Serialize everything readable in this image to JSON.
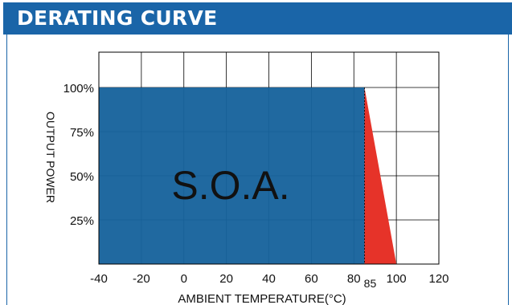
{
  "header": {
    "title": "DERATING CURVE"
  },
  "colors": {
    "header_bg": "#1a65a8",
    "soa_fill": "#17639c",
    "derate_fill": "#e63329",
    "grid": "#000000"
  },
  "chart_data": {
    "type": "area",
    "title": "DERATING CURVE",
    "xlabel": "AMBIENT TEMPERATURE(°C)",
    "ylabel": "OUTPUT POWER",
    "xlim": [
      -40,
      120
    ],
    "ylim": [
      0,
      120
    ],
    "x_ticks": [
      -40,
      -20,
      0,
      20,
      40,
      60,
      80,
      100,
      120
    ],
    "x_tick_labels": [
      "-40",
      "-20",
      "0",
      "20",
      "40",
      "60",
      "80",
      "100",
      "120"
    ],
    "extra_x_tick": {
      "value": 85,
      "label": "85"
    },
    "y_ticks": [
      25,
      50,
      75,
      100
    ],
    "y_tick_labels": [
      "25%",
      "50%",
      "75%",
      "100%"
    ],
    "grid": true,
    "soa_label": "S.O.A.",
    "series": [
      {
        "values_x": [
          -40,
          80,
          85,
          85,
          -40
        ],
        "values_y": [
          100,
          100,
          100,
          0,
          0
        ]
      },
      {
        "values_x": [
          85,
          100,
          85
        ],
        "values_y": [
          100,
          0,
          0
        ]
      }
    ]
  }
}
